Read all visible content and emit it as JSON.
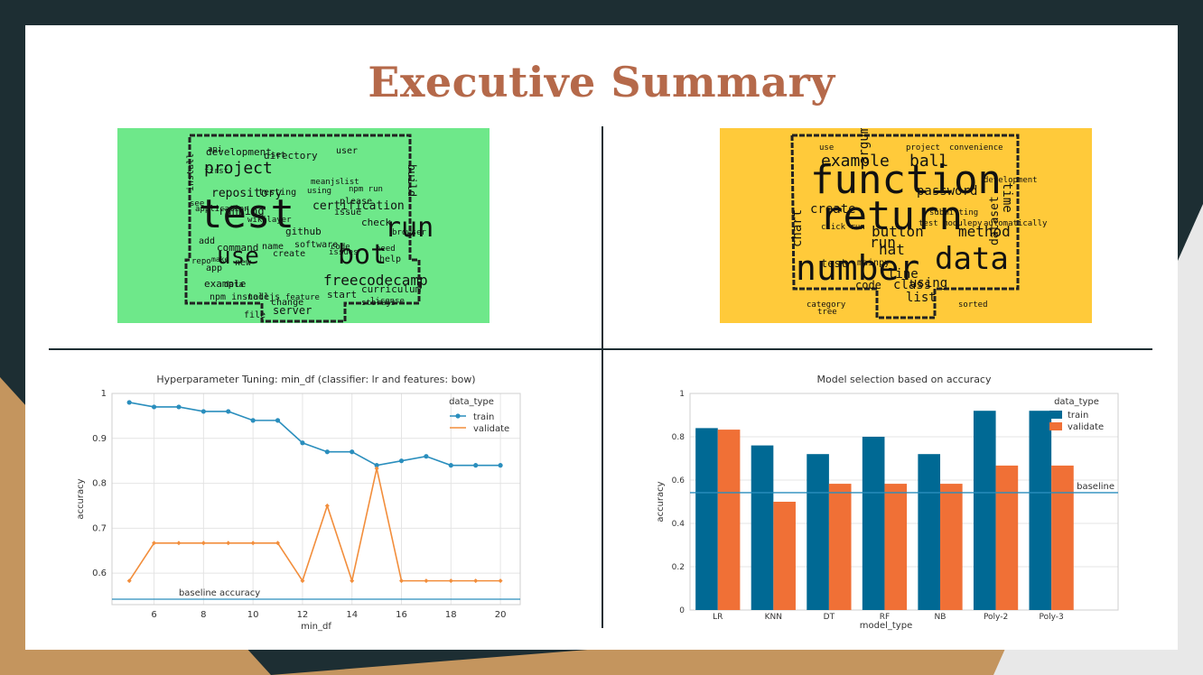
{
  "slide": {
    "title": "Executive Summary",
    "colors": {
      "title": "#b5694a",
      "background": "#1d2e33",
      "accent_tan": "#c4955e",
      "card": "#ffffff"
    }
  },
  "wordclouds": [
    {
      "background": "#6ee88a",
      "words": [
        "project",
        "test",
        "use",
        "run",
        "bot",
        "example",
        "freecodecamp",
        "certification",
        "repository",
        "github",
        "user",
        "command",
        "data",
        "running",
        "directory",
        "development",
        "server",
        "build",
        "install",
        "application",
        "file",
        "change",
        "curriculum",
        "license",
        "code",
        "need",
        "help",
        "check",
        "please",
        "issue",
        "add",
        "see",
        "wiki",
        "name",
        "software",
        "create",
        "make",
        "repo",
        "app",
        "new",
        "npm install",
        "nodejs",
        "feature",
        "start",
        "storejs",
        "api",
        "set",
        "testing",
        "npm run",
        "browser",
        "using",
        "issues",
        "meanjs",
        "list",
        "player",
        "first"
      ]
    },
    {
      "background": "#ffca3a",
      "words": [
        "function",
        "return",
        "number",
        "data",
        "example",
        "argument",
        "create",
        "password",
        "ball",
        "run",
        "button",
        "method",
        "chart",
        "hat",
        "mainpy",
        "test",
        "code",
        "class",
        "line",
        "using",
        "list",
        "dataset",
        "time",
        "development",
        "use",
        "convenience",
        "project",
        "automatically",
        "category",
        "submitting",
        "test modulepy",
        "click run",
        "tree",
        "sorted"
      ]
    }
  ],
  "chart_data": [
    {
      "type": "line",
      "title": "Hyperparameter Tuning: min_df (classifier: lr and features: bow)",
      "xlabel": "min_df",
      "ylabel": "accuracy",
      "xlim": [
        4.3,
        20.8
      ],
      "ylim": [
        0.53,
        1.0
      ],
      "xticks": [
        6,
        8,
        10,
        12,
        14,
        16,
        18,
        20
      ],
      "yticks": [
        0.6,
        0.7,
        0.8,
        0.9,
        1.0
      ],
      "grid": true,
      "legend": {
        "title": "data_type",
        "placement": "top-right"
      },
      "x": [
        5,
        6,
        7,
        8,
        9,
        10,
        11,
        12,
        13,
        14,
        15,
        16,
        17,
        18,
        19,
        20
      ],
      "series": [
        {
          "name": "train",
          "color": "#2a8ebd",
          "marker": "circle",
          "values": [
            0.98,
            0.97,
            0.97,
            0.96,
            0.96,
            0.94,
            0.94,
            0.89,
            0.87,
            0.87,
            0.84,
            0.85,
            0.86,
            0.84,
            0.84,
            0.84
          ]
        },
        {
          "name": "validate",
          "color": "#f28e3c",
          "marker": "star",
          "values": [
            0.583,
            0.667,
            0.667,
            0.667,
            0.667,
            0.667,
            0.667,
            0.583,
            0.75,
            0.583,
            0.833,
            0.583,
            0.583,
            0.583,
            0.583,
            0.583
          ]
        }
      ],
      "baseline": {
        "label": "baseline accuracy",
        "value": 0.542,
        "color": "#2a8ebd"
      }
    },
    {
      "type": "bar",
      "title": "Model selection based on accuracy",
      "xlabel": "model_type",
      "ylabel": "accuracy",
      "ylim": [
        0,
        1.0
      ],
      "yticks": [
        0.0,
        0.2,
        0.4,
        0.6,
        0.8,
        1.0
      ],
      "grid": true,
      "legend": {
        "title": "data_type",
        "placement": "top-right"
      },
      "categories": [
        "LR",
        "KNN",
        "DT",
        "RF",
        "NB",
        "Poly-2",
        "Poly-3"
      ],
      "series": [
        {
          "name": "train",
          "color": "#006994",
          "values": [
            0.84,
            0.76,
            0.72,
            0.8,
            0.72,
            0.92,
            0.92
          ]
        },
        {
          "name": "validate",
          "color": "#f07036",
          "values": [
            0.833,
            0.5,
            0.583,
            0.583,
            0.583,
            0.667,
            0.667
          ]
        }
      ],
      "baseline": {
        "label": "baseline",
        "value": 0.542,
        "color": "#2a8ebd"
      }
    }
  ]
}
